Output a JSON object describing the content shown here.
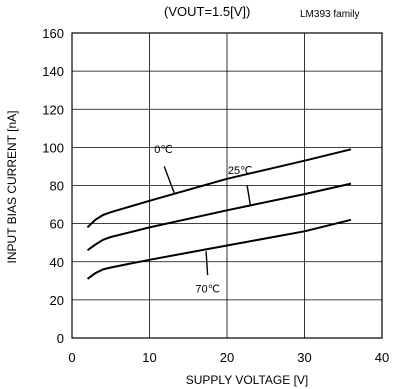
{
  "chart_data": {
    "type": "line",
    "title": "(VOUT=1.5[V])",
    "subtitle": "LM393 family",
    "xlabel": "SUPPLY VOLTAGE  [V]",
    "ylabel": "INPUT BIAS CURRENT [nA]",
    "xlim": [
      0,
      40
    ],
    "ylim": [
      0,
      160
    ],
    "xticks": [
      "0",
      "10",
      "20",
      "30",
      "40"
    ],
    "yticks": [
      "0",
      "20",
      "40",
      "60",
      "80",
      "100",
      "120",
      "140",
      "160"
    ],
    "grid": true,
    "legend": "none",
    "series": [
      {
        "name": "0℃",
        "x": [
          2,
          3,
          4,
          5,
          10,
          20,
          30,
          36
        ],
        "y": [
          58,
          62,
          64.5,
          66,
          72,
          83.5,
          93,
          99
        ]
      },
      {
        "name": "25℃",
        "x": [
          2,
          3,
          4,
          5,
          10,
          20,
          30,
          36
        ],
        "y": [
          46,
          49,
          51.5,
          53,
          58,
          67,
          75.5,
          81
        ]
      },
      {
        "name": "70℃",
        "x": [
          2,
          3,
          4,
          5,
          10,
          20,
          30,
          36
        ],
        "y": [
          31,
          34,
          36,
          37,
          41,
          48.5,
          56,
          62
        ]
      }
    ],
    "line_color": "#000000"
  }
}
